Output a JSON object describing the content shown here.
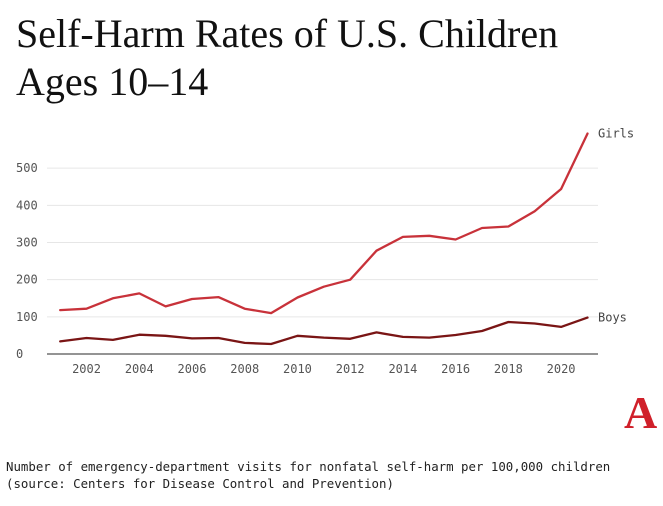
{
  "chart_data": {
    "type": "line",
    "title": "Self-Harm Rates of U.S. Children Ages 10–14",
    "xlabel": "",
    "ylabel": "",
    "x": [
      2001,
      2002,
      2003,
      2004,
      2005,
      2006,
      2007,
      2008,
      2009,
      2010,
      2011,
      2012,
      2013,
      2014,
      2015,
      2016,
      2017,
      2018,
      2019,
      2020,
      2021
    ],
    "x_ticks": [
      "2002",
      "2004",
      "2006",
      "2008",
      "2010",
      "2012",
      "2014",
      "2016",
      "2018",
      "2020"
    ],
    "y_ticks": [
      "0",
      "100",
      "200",
      "300",
      "400",
      "500"
    ],
    "ylim": [
      0,
      600
    ],
    "xlim": [
      2000.5,
      2021.4
    ],
    "grid": true,
    "series": [
      {
        "name": "Girls",
        "color": "#c8323a",
        "values": [
          118,
          122,
          150,
          163,
          128,
          148,
          153,
          122,
          110,
          152,
          181,
          200,
          278,
          315,
          318,
          308,
          339,
          343,
          384,
          444,
          593
        ]
      },
      {
        "name": "Boys",
        "color": "#7a1515",
        "values": [
          34,
          43,
          38,
          52,
          49,
          42,
          43,
          30,
          27,
          49,
          44,
          41,
          58,
          46,
          44,
          51,
          62,
          86,
          82,
          73,
          98
        ]
      }
    ]
  },
  "logo": {
    "text": "A",
    "color": "#d0202a"
  },
  "caption": "Number of emergency-department visits for nonfatal self-harm per 100,000 children (source: Centers for Disease Control and Prevention)"
}
